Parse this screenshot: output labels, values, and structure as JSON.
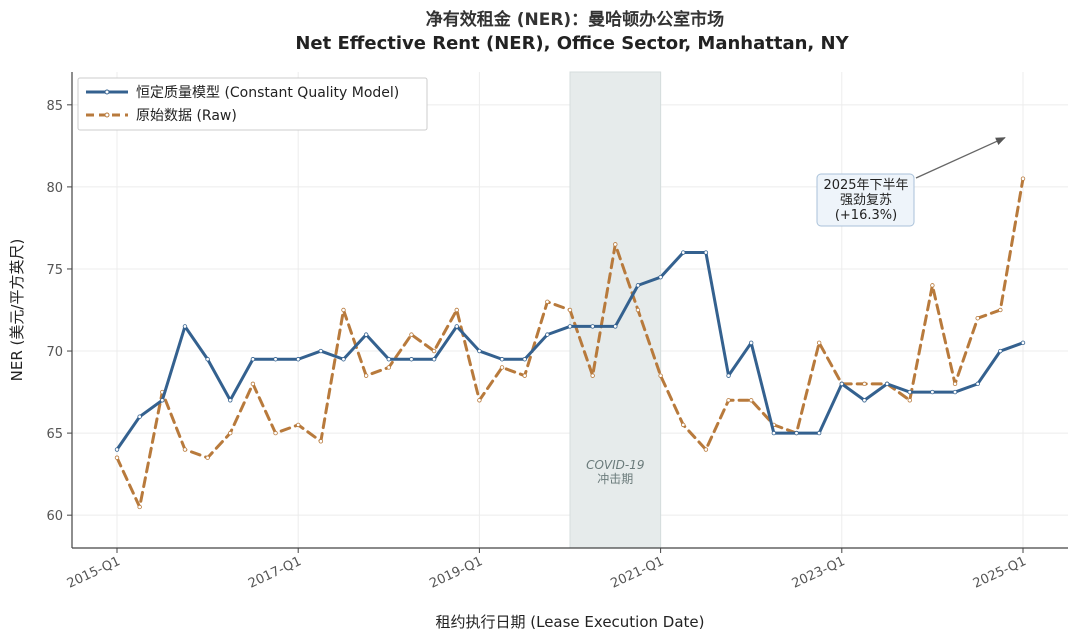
{
  "chart_data": {
    "type": "line",
    "title_cn": "净有效租金 (NER)：曼哈顿办公室市场",
    "title_en": "Net Effective Rent (NER), Office Sector, Manhattan, NY",
    "xlabel": "租约执行日期 (Lease Execution Date)",
    "ylabel": "NER (美元/平方英尺)",
    "ylim": [
      58,
      87
    ],
    "yticks": [
      60,
      65,
      70,
      75,
      80,
      85
    ],
    "x_start_quarter_index": 0,
    "xticks": [
      {
        "label": "2015-Q1",
        "q": 0
      },
      {
        "label": "2017-Q1",
        "q": 8
      },
      {
        "label": "2019-Q1",
        "q": 16
      },
      {
        "label": "2021-Q1",
        "q": 24
      },
      {
        "label": "2023-Q1",
        "q": 32
      },
      {
        "label": "2025-Q1",
        "q": 40
      }
    ],
    "xlim_q": [
      -2,
      41.5
    ],
    "series": [
      {
        "name": "恒定质量模型 (Constant Quality Model)",
        "color": "#34618f",
        "style": "solid",
        "values": [
          64.0,
          66.0,
          67.0,
          71.5,
          69.5,
          67.0,
          69.5,
          69.5,
          69.5,
          70.0,
          69.5,
          71.0,
          69.5,
          69.5,
          69.5,
          71.5,
          70.0,
          69.5,
          69.5,
          71.0,
          71.5,
          71.5,
          71.5,
          74.0,
          74.5,
          76.0,
          76.0,
          68.5,
          70.5,
          65.0,
          65.0,
          65.0,
          68.0,
          67.0,
          68.0,
          67.5,
          67.5,
          67.5,
          68.0,
          70.0,
          70.5
        ]
      },
      {
        "name": "原始数据 (Raw)",
        "color": "#b87a3c",
        "style": "dashed",
        "values": [
          63.5,
          60.5,
          67.5,
          64.0,
          63.5,
          65.0,
          68.0,
          65.0,
          65.5,
          64.5,
          72.5,
          68.5,
          69.0,
          71.0,
          70.0,
          72.5,
          67.0,
          69.0,
          68.5,
          73.0,
          72.5,
          68.5,
          76.5,
          72.5,
          68.5,
          65.5,
          64.0,
          67.0,
          67.0,
          65.5,
          65.0,
          70.5,
          68.0,
          68.0,
          68.0,
          67.0,
          74.0,
          68.0,
          72.0,
          72.5,
          80.5
        ]
      }
    ],
    "shaded_region": {
      "label_line1": "COVID-19",
      "label_line2": "冲击期",
      "q_start": 20,
      "q_end": 24
    },
    "annotation": {
      "lines": [
        "2025年下半年",
        "强劲复苏",
        "(+16.3%)"
      ],
      "arrow_target_q": 39.2,
      "arrow_target_y": 83.0
    },
    "legend_position": "top-left",
    "grid": true,
    "colors": {
      "shade": "#e6ebeb",
      "grid": "#ececec",
      "annot_bg": "#eef4fa",
      "annot_border": "#a9c1d9"
    }
  }
}
